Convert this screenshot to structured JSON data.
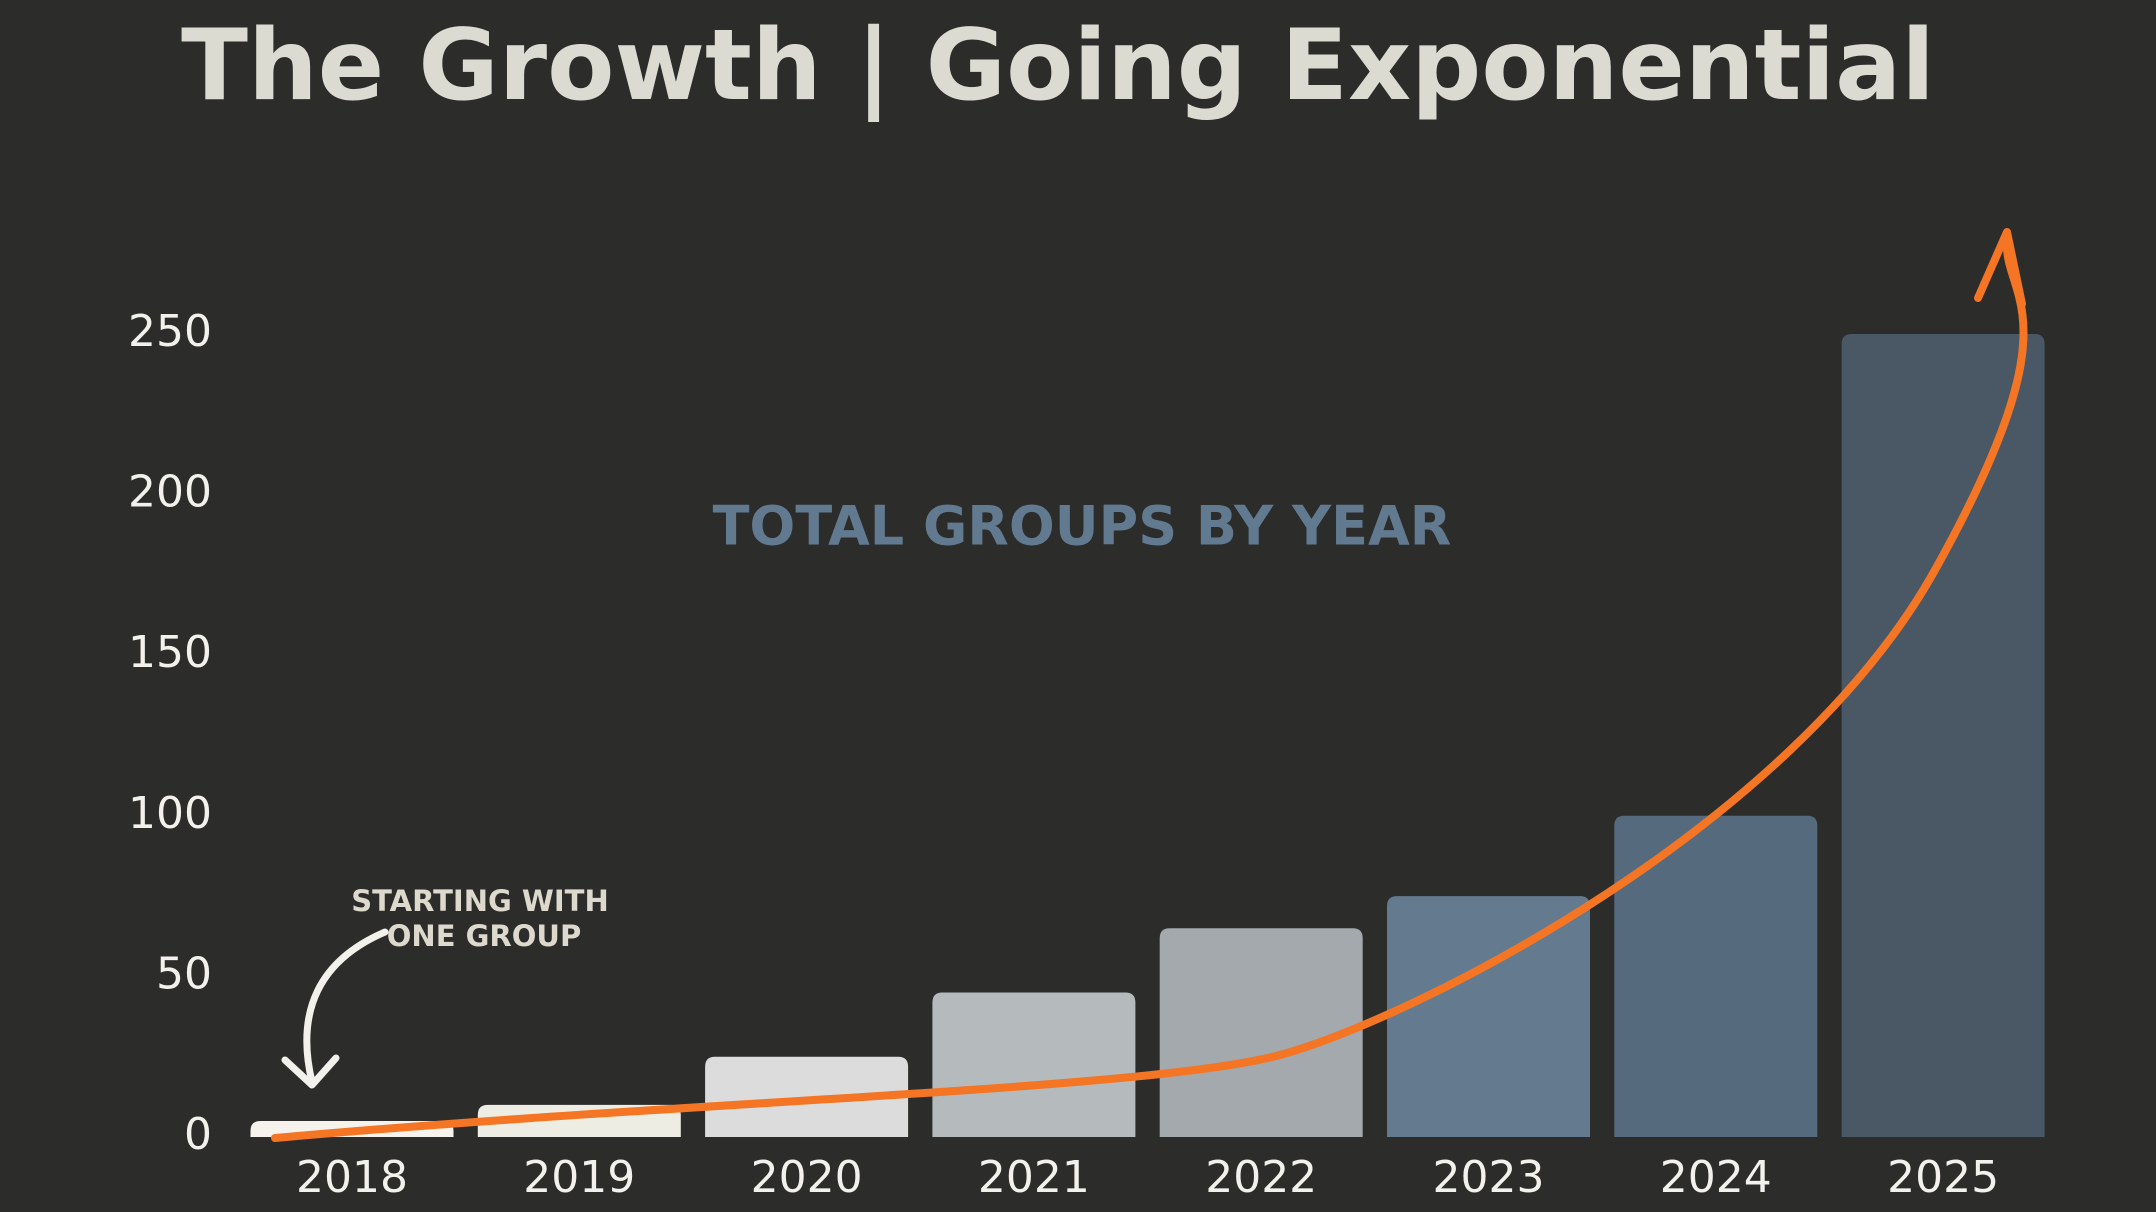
{
  "chart_data": {
    "type": "bar",
    "title": "The Growth | Going Exponential",
    "subtitle": "TOTAL GROUPS BY YEAR",
    "annotation": [
      "STARTING WITH",
      "ONE GROUP"
    ],
    "categories": [
      "2018",
      "2019",
      "2020",
      "2021",
      "2022",
      "2023",
      "2024",
      "2025"
    ],
    "values": [
      5,
      10,
      25,
      45,
      65,
      75,
      100,
      250
    ],
    "colors": [
      "#f5f3ec",
      "#eeede4",
      "#dcdcdc",
      "#b5babd",
      "#a4a9ad",
      "#637a8f",
      "#566a7d",
      "#4a5866"
    ],
    "ylim": [
      0,
      250
    ],
    "yticks": [
      0,
      50,
      100,
      150,
      200,
      250
    ],
    "grid": false
  }
}
